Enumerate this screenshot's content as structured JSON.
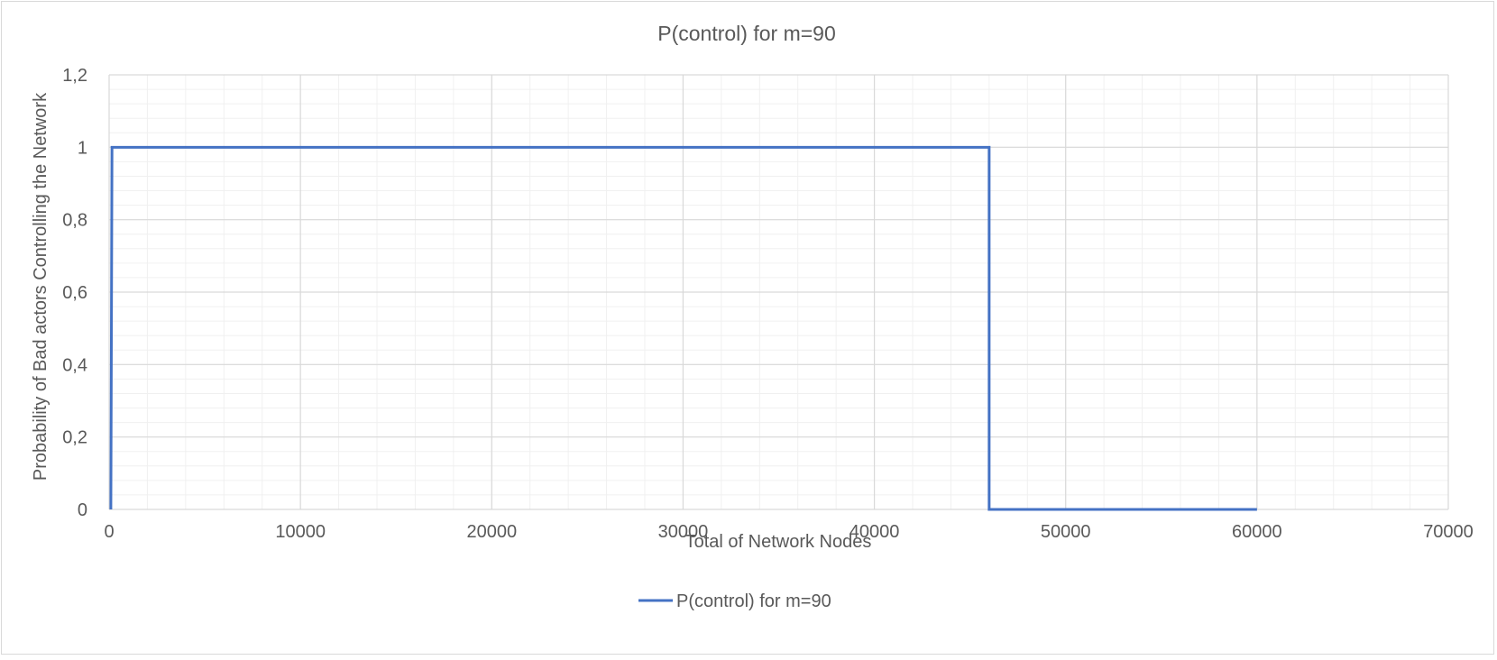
{
  "chart_data": {
    "type": "line",
    "title": "P(control) for m=90",
    "xlabel": "Total of Network Nodes",
    "ylabel": "Probability of Bad actors Controlling the Network",
    "xlim": [
      0,
      70000
    ],
    "ylim": [
      0,
      1.2
    ],
    "x_ticks": [
      0,
      10000,
      20000,
      30000,
      40000,
      50000,
      60000,
      70000
    ],
    "x_tick_labels": [
      "0",
      "10000",
      "20000",
      "30000",
      "40000",
      "50000",
      "60000",
      "70000"
    ],
    "y_ticks": [
      0,
      0.2,
      0.4,
      0.6,
      0.8,
      1,
      1.2
    ],
    "y_tick_labels": [
      "0",
      "0,2",
      "0,4",
      "0,6",
      "0,8",
      "1",
      "1,2"
    ],
    "grid": true,
    "legend_position": "bottom",
    "series": [
      {
        "name": "P(control) for m=90",
        "color": "#4472c4",
        "x": [
          90,
          150,
          46000,
          46000,
          60000
        ],
        "y": [
          0,
          1,
          1,
          0,
          0
        ]
      }
    ]
  }
}
